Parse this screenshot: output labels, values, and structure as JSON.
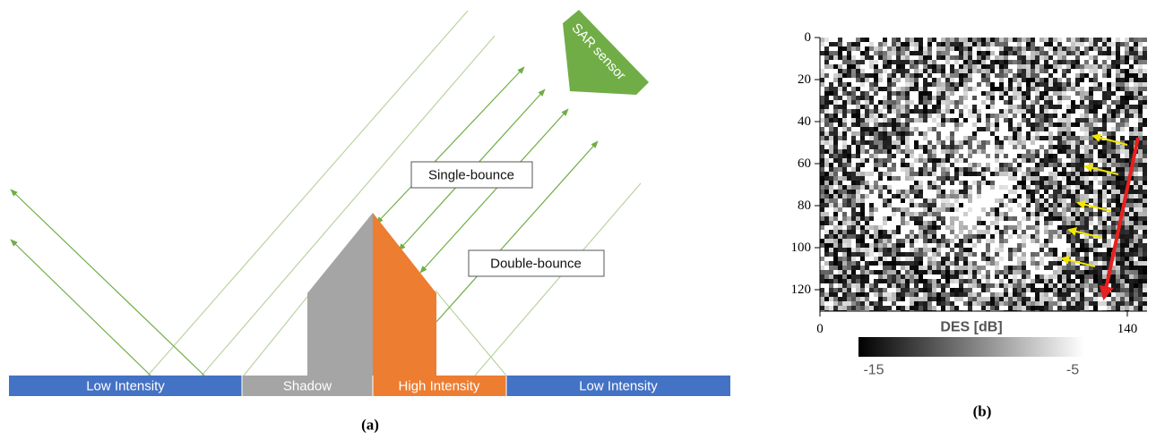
{
  "panel_a": {
    "caption": "(a)",
    "sensor_label": "SAR sensor",
    "single_bounce_label": "Single-bounce",
    "double_bounce_label": "Double-bounce",
    "ground_segments": [
      {
        "label": "Low Intensity",
        "color": "#4472c4"
      },
      {
        "label": "Shadow",
        "color": "#a5a5a5"
      },
      {
        "label": "High Intensity",
        "color": "#ed7d31"
      },
      {
        "label": "Low Intensity",
        "color": "#4472c4"
      }
    ],
    "colors": {
      "sensor": "#70ad47",
      "ray": "#70ad47",
      "building_shadow_side": "#a5a5a5",
      "building_lit_side": "#ed7d31"
    }
  },
  "panel_b": {
    "caption": "(b)",
    "y_ticks": [
      "0",
      "20",
      "40",
      "60",
      "80",
      "100",
      "120"
    ],
    "x_ticks": [
      "0",
      "140"
    ],
    "colorbar_title": "DES [dB]",
    "colorbar_min": "-15",
    "colorbar_max": "-5",
    "colors": {
      "arrow_main": "#e8201f",
      "arrow_small": "#f2e600"
    }
  }
}
